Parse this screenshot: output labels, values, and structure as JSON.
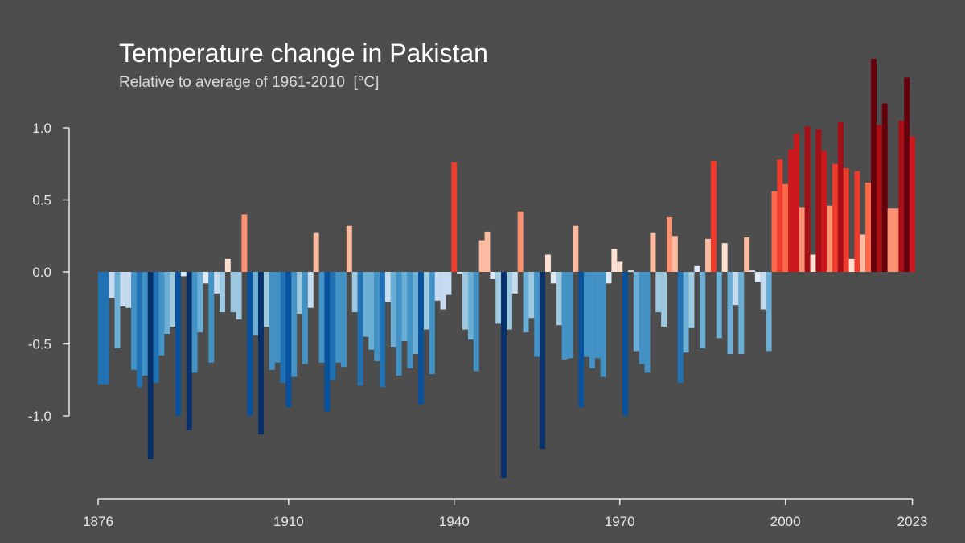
{
  "chart_data": {
    "type": "bar",
    "title": "Temperature change in Pakistan",
    "subtitle": "Relative to average of 1961-2010  [°C]",
    "xlabel": "",
    "ylabel": "",
    "x_start": 1876,
    "x_end": 2023,
    "ylim": [
      -1.45,
      1.45
    ],
    "grid": false,
    "legend": "none",
    "y_ticks": [
      1.0,
      0.5,
      0.0,
      -0.5,
      -1.0
    ],
    "y_tick_labels": [
      "1.0",
      "0.5",
      "0.0",
      "-0.5",
      "-1.0"
    ],
    "x_ticks": [
      1876,
      1910,
      1940,
      1970,
      2000,
      2023
    ],
    "x_tick_labels": [
      "1876",
      "1910",
      "1940",
      "1970",
      "2000",
      "2023"
    ],
    "color_scale": {
      "min": -1.2,
      "max": 1.3,
      "colors": [
        "#08306b",
        "#08519c",
        "#2171b5",
        "#4292c6",
        "#6baed6",
        "#9ecae1",
        "#c6dbef",
        "#deebf7",
        "#fee0d2",
        "#fcbba1",
        "#fc9272",
        "#fb6a4a",
        "#ef3b2c",
        "#cb181d",
        "#a50f15",
        "#67000d"
      ]
    },
    "values": [
      -0.78,
      -0.78,
      -0.18,
      -0.53,
      -0.24,
      -0.25,
      -0.68,
      -0.8,
      -0.72,
      -1.3,
      -0.77,
      -0.58,
      -0.43,
      -0.38,
      -1.0,
      -0.03,
      -1.1,
      -0.7,
      -0.42,
      -0.08,
      -0.63,
      -0.15,
      -0.28,
      0.09,
      -0.28,
      -0.33,
      0.4,
      -1.0,
      -0.44,
      -1.13,
      -0.38,
      -0.68,
      -0.63,
      -0.77,
      -0.94,
      -0.73,
      -0.29,
      -0.64,
      -0.25,
      0.27,
      -0.63,
      -0.97,
      -0.75,
      -0.63,
      -0.66,
      0.32,
      -0.28,
      -0.79,
      -0.45,
      -0.54,
      -0.62,
      -0.8,
      -0.21,
      -0.52,
      -0.72,
      -0.48,
      -0.67,
      -0.57,
      -0.92,
      -0.4,
      -0.71,
      -0.2,
      -0.26,
      -0.16,
      0.76,
      -0.01,
      -0.4,
      -0.47,
      -0.69,
      0.22,
      0.28,
      -0.05,
      -0.36,
      -1.43,
      -0.4,
      -0.15,
      0.42,
      -0.42,
      -0.32,
      -0.59,
      -1.23,
      0.12,
      -0.08,
      -0.37,
      -0.61,
      -0.6,
      0.32,
      -0.94,
      -0.59,
      -0.67,
      -0.6,
      -0.73,
      -0.08,
      0.16,
      0.07,
      -1.0,
      0.01,
      -0.55,
      -0.64,
      -0.7,
      0.27,
      -0.28,
      -0.38,
      0.38,
      0.25,
      -0.77,
      -0.56,
      -0.39,
      0.04,
      -0.53,
      0.23,
      0.77,
      -0.46,
      0.2,
      -0.57,
      -0.23,
      -0.57,
      0.24,
      0.01,
      -0.07,
      -0.26,
      -0.55,
      0.56,
      0.78,
      0.61,
      0.85,
      0.96,
      0.45,
      1.01,
      0.12,
      0.99,
      0.84,
      0.46,
      0.75,
      1.04,
      0.72,
      0.09,
      0.7,
      0.26,
      0.62,
      1.48,
      1.02,
      1.17,
      0.44,
      0.44,
      1.05,
      1.35,
      0.94
    ]
  }
}
